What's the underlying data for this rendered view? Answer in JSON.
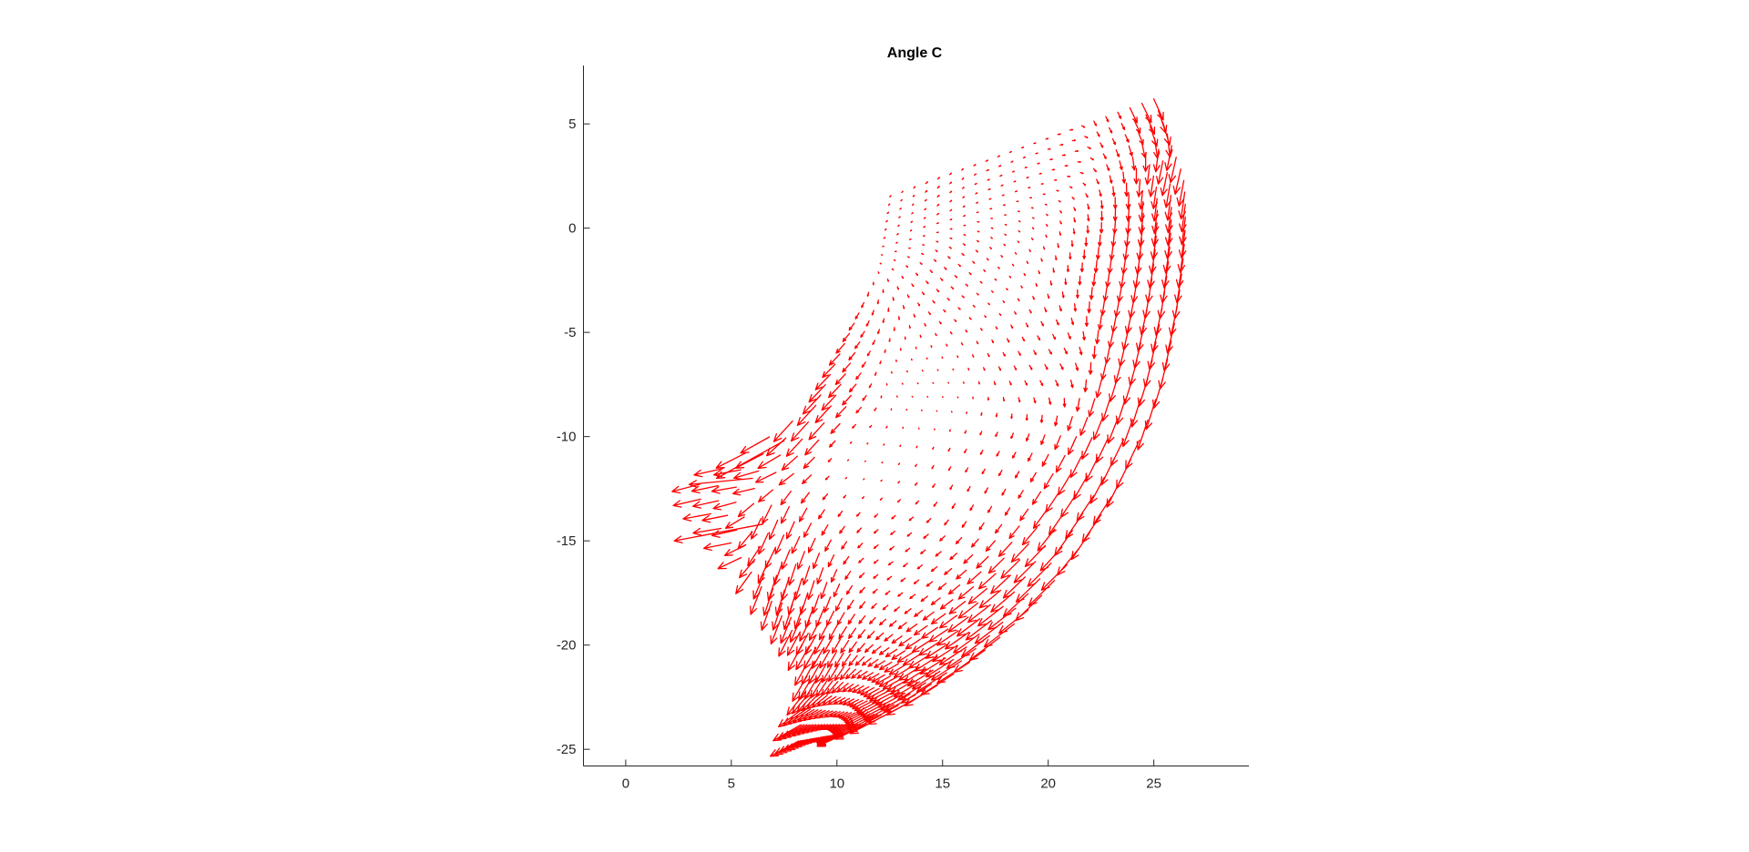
{
  "chart_data": {
    "type": "quiver",
    "title": "Angle C",
    "xlabel": "",
    "ylabel": "",
    "xlim": [
      -2,
      29.5
    ],
    "ylim": [
      -25.8,
      7.8
    ],
    "xticks": [
      0,
      5,
      10,
      15,
      20,
      25
    ],
    "yticks": [
      -25,
      -20,
      -15,
      -10,
      -5,
      0,
      5
    ],
    "xtick_labels": [
      "0",
      "5",
      "10",
      "15",
      "20",
      "25"
    ],
    "ytick_labels": [
      "-25",
      "-20",
      "-15",
      "-10",
      "-5",
      "0",
      "5"
    ],
    "grid": false,
    "box": false,
    "arrow_color": "#ff0000",
    "field_domain": {
      "s_range": [
        0,
        1
      ],
      "t_range": [
        0,
        1
      ],
      "description_units": "data"
    },
    "vectors": [
      {
        "x": 26.2,
        "y": 3.5,
        "u": -0.5,
        "v": -2.2
      },
      {
        "x": 25.5,
        "y": 5.5,
        "u": 0.6,
        "v": -2.0
      },
      {
        "x": 24.5,
        "y": 6.0,
        "u": 0.9,
        "v": -1.8
      },
      {
        "x": 23.0,
        "y": 5.2,
        "u": 0.3,
        "v": -0.6
      },
      {
        "x": 26.3,
        "y": 0.5,
        "u": -0.3,
        "v": -2.4
      },
      {
        "x": 26.0,
        "y": -2.0,
        "u": -0.4,
        "v": -2.5
      },
      {
        "x": 25.5,
        "y": -5.0,
        "u": -0.6,
        "v": -2.6
      },
      {
        "x": 24.8,
        "y": -8.0,
        "u": -0.8,
        "v": -2.6
      },
      {
        "x": 23.8,
        "y": -11.0,
        "u": -1.2,
        "v": -2.5
      },
      {
        "x": 22.5,
        "y": -14.0,
        "u": -1.6,
        "v": -2.4
      },
      {
        "x": 20.5,
        "y": -17.0,
        "u": -2.2,
        "v": -2.2
      },
      {
        "x": 18.5,
        "y": -19.5,
        "u": -2.6,
        "v": -2.0
      },
      {
        "x": 15.5,
        "y": -21.5,
        "u": -2.8,
        "v": -1.8
      },
      {
        "x": 12.5,
        "y": -23.0,
        "u": -3.0,
        "v": -1.6
      },
      {
        "x": 10.5,
        "y": -24.0,
        "u": -2.6,
        "v": -1.2
      },
      {
        "x": 9.0,
        "y": -20.5,
        "u": -1.2,
        "v": -2.2
      },
      {
        "x": 8.0,
        "y": -17.0,
        "u": -0.8,
        "v": -2.6
      },
      {
        "x": 7.0,
        "y": -14.0,
        "u": -1.0,
        "v": -2.4
      },
      {
        "x": 5.5,
        "y": -12.0,
        "u": -2.5,
        "v": -0.4
      },
      {
        "x": 6.0,
        "y": -10.5,
        "u": -2.6,
        "v": -1.4
      },
      {
        "x": 8.5,
        "y": -9.5,
        "u": -1.6,
        "v": -1.8
      },
      {
        "x": 4.5,
        "y": -14.5,
        "u": -2.4,
        "v": -0.4
      },
      {
        "x": 12.5,
        "y": 1.5,
        "u": 0.1,
        "v": 0.1
      },
      {
        "x": 15.0,
        "y": 2.5,
        "u": 0.2,
        "v": 0.2
      },
      {
        "x": 18.0,
        "y": 3.5,
        "u": 0.4,
        "v": 0.2
      },
      {
        "x": 20.5,
        "y": 4.2,
        "u": 0.5,
        "v": 0.1
      },
      {
        "x": 16.5,
        "y": -3.0,
        "u": 0.3,
        "v": -0.3
      },
      {
        "x": 19.5,
        "y": -6.0,
        "u": 0.5,
        "v": -0.9
      },
      {
        "x": 14.0,
        "y": -8.0,
        "u": 0.1,
        "v": -0.1
      },
      {
        "x": 17.0,
        "y": -12.0,
        "u": -0.5,
        "v": -0.9
      },
      {
        "x": 13.0,
        "y": -16.0,
        "u": -1.0,
        "v": -0.8
      },
      {
        "x": 11.0,
        "y": -11.0,
        "u": -0.1,
        "v": -0.1
      }
    ]
  }
}
